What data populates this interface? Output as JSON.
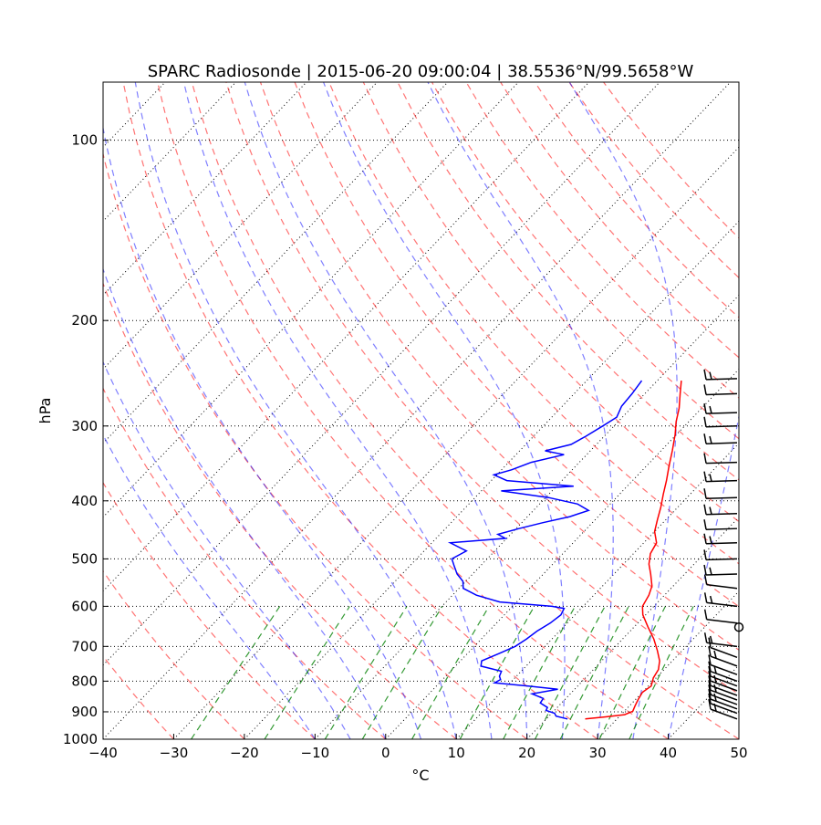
{
  "chart_data": {
    "type": "skew-t",
    "title": "SPARC Radiosonde | 2015-06-20 09:00:04 | 38.5536°N/99.5658°W",
    "xlabel": "°C",
    "ylabel": "hPa",
    "xlim": [
      -40,
      50
    ],
    "ylim_hpa": [
      1000,
      80
    ],
    "x_ticks": [
      -40,
      -30,
      -20,
      -10,
      0,
      10,
      20,
      30,
      40,
      50
    ],
    "x_tick_labels": [
      "−40",
      "−30",
      "−20",
      "−10",
      "0",
      "10",
      "20",
      "30",
      "40",
      "50"
    ],
    "y_ticks": [
      100,
      200,
      300,
      400,
      500,
      600,
      700,
      800,
      900,
      1000
    ],
    "y_tick_labels": [
      "100",
      "200",
      "300",
      "400",
      "500",
      "600",
      "700",
      "800",
      "900",
      "1000"
    ],
    "grid": true,
    "series": [
      {
        "role": "temperature",
        "color": "#ff0000",
        "points": [
          {
            "p": 925,
            "t": 25.5
          },
          {
            "p": 918,
            "t": 28.0
          },
          {
            "p": 910,
            "t": 30.5
          },
          {
            "p": 898,
            "t": 31.2
          },
          {
            "p": 880,
            "t": 30.8
          },
          {
            "p": 860,
            "t": 30.4
          },
          {
            "p": 835,
            "t": 30.0
          },
          {
            "p": 815,
            "t": 30.4
          },
          {
            "p": 790,
            "t": 29.6
          },
          {
            "p": 765,
            "t": 29.2
          },
          {
            "p": 740,
            "t": 28.2
          },
          {
            "p": 710,
            "t": 26.4
          },
          {
            "p": 680,
            "t": 24.4
          },
          {
            "p": 650,
            "t": 22.0
          },
          {
            "p": 620,
            "t": 19.6
          },
          {
            "p": 600,
            "t": 18.4
          },
          {
            "p": 575,
            "t": 17.8
          },
          {
            "p": 555,
            "t": 17.0
          },
          {
            "p": 530,
            "t": 15.2
          },
          {
            "p": 510,
            "t": 13.6
          },
          {
            "p": 490,
            "t": 12.4
          },
          {
            "p": 470,
            "t": 11.8
          },
          {
            "p": 450,
            "t": 10.0
          },
          {
            "p": 430,
            "t": 8.8
          },
          {
            "p": 410,
            "t": 7.6
          },
          {
            "p": 390,
            "t": 6.2
          },
          {
            "p": 370,
            "t": 4.8
          },
          {
            "p": 350,
            "t": 3.2
          },
          {
            "p": 330,
            "t": 1.6
          },
          {
            "p": 310,
            "t": -0.2
          },
          {
            "p": 295,
            "t": -1.8
          },
          {
            "p": 280,
            "t": -3.2
          },
          {
            "p": 265,
            "t": -5.0
          },
          {
            "p": 252,
            "t": -6.6
          }
        ]
      },
      {
        "role": "dewpoint",
        "color": "#0000ff",
        "points": [
          {
            "p": 925,
            "t": 23.0
          },
          {
            "p": 915,
            "t": 21.0
          },
          {
            "p": 905,
            "t": 20.4
          },
          {
            "p": 895,
            "t": 18.8
          },
          {
            "p": 885,
            "t": 18.6
          },
          {
            "p": 870,
            "t": 17.0
          },
          {
            "p": 855,
            "t": 16.8
          },
          {
            "p": 840,
            "t": 14.6
          },
          {
            "p": 825,
            "t": 17.6
          },
          {
            "p": 815,
            "t": 13.0
          },
          {
            "p": 805,
            "t": 7.8
          },
          {
            "p": 795,
            "t": 8.2
          },
          {
            "p": 785,
            "t": 7.6
          },
          {
            "p": 770,
            "t": 7.2
          },
          {
            "p": 755,
            "t": 3.6
          },
          {
            "p": 740,
            "t": 3.0
          },
          {
            "p": 720,
            "t": 4.4
          },
          {
            "p": 700,
            "t": 5.8
          },
          {
            "p": 680,
            "t": 6.4
          },
          {
            "p": 660,
            "t": 6.8
          },
          {
            "p": 640,
            "t": 7.6
          },
          {
            "p": 620,
            "t": 8.0
          },
          {
            "p": 605,
            "t": 7.6
          },
          {
            "p": 600,
            "t": 5.6
          },
          {
            "p": 590,
            "t": -2.4
          },
          {
            "p": 575,
            "t": -6.6
          },
          {
            "p": 560,
            "t": -9.4
          },
          {
            "p": 545,
            "t": -10.4
          },
          {
            "p": 530,
            "t": -12.2
          },
          {
            "p": 515,
            "t": -13.6
          },
          {
            "p": 500,
            "t": -15.0
          },
          {
            "p": 485,
            "t": -14.0
          },
          {
            "p": 470,
            "t": -17.4
          },
          {
            "p": 462,
            "t": -10.2
          },
          {
            "p": 455,
            "t": -11.8
          },
          {
            "p": 445,
            "t": -9.6
          },
          {
            "p": 435,
            "t": -7.0
          },
          {
            "p": 425,
            "t": -4.0
          },
          {
            "p": 415,
            "t": -2.2
          },
          {
            "p": 405,
            "t": -4.6
          },
          {
            "p": 395,
            "t": -9.6
          },
          {
            "p": 385,
            "t": -17.2
          },
          {
            "p": 378,
            "t": -7.6
          },
          {
            "p": 370,
            "t": -17.8
          },
          {
            "p": 362,
            "t": -20.4
          },
          {
            "p": 355,
            "t": -18.6
          },
          {
            "p": 345,
            "t": -16.8
          },
          {
            "p": 335,
            "t": -13.2
          },
          {
            "p": 330,
            "t": -16.4
          },
          {
            "p": 322,
            "t": -13.6
          },
          {
            "p": 312,
            "t": -12.6
          },
          {
            "p": 300,
            "t": -11.6
          },
          {
            "p": 290,
            "t": -10.8
          },
          {
            "p": 278,
            "t": -11.6
          },
          {
            "p": 265,
            "t": -11.8
          },
          {
            "p": 252,
            "t": -12.2
          }
        ]
      }
    ],
    "wind_barbs_hpa": [
      925,
      905,
      890,
      875,
      860,
      845,
      830,
      815,
      800,
      780,
      755,
      730,
      700,
      640,
      600,
      560,
      530,
      500,
      470,
      445,
      420,
      395,
      370,
      345,
      320,
      300,
      285,
      265,
      250
    ],
    "reference_lines": {
      "dry_adiabat_color": "#ff0000",
      "moist_adiabat_color": "#0000ff",
      "mixing_ratio_color": "#008000",
      "isotherm_color": "#000000"
    }
  }
}
